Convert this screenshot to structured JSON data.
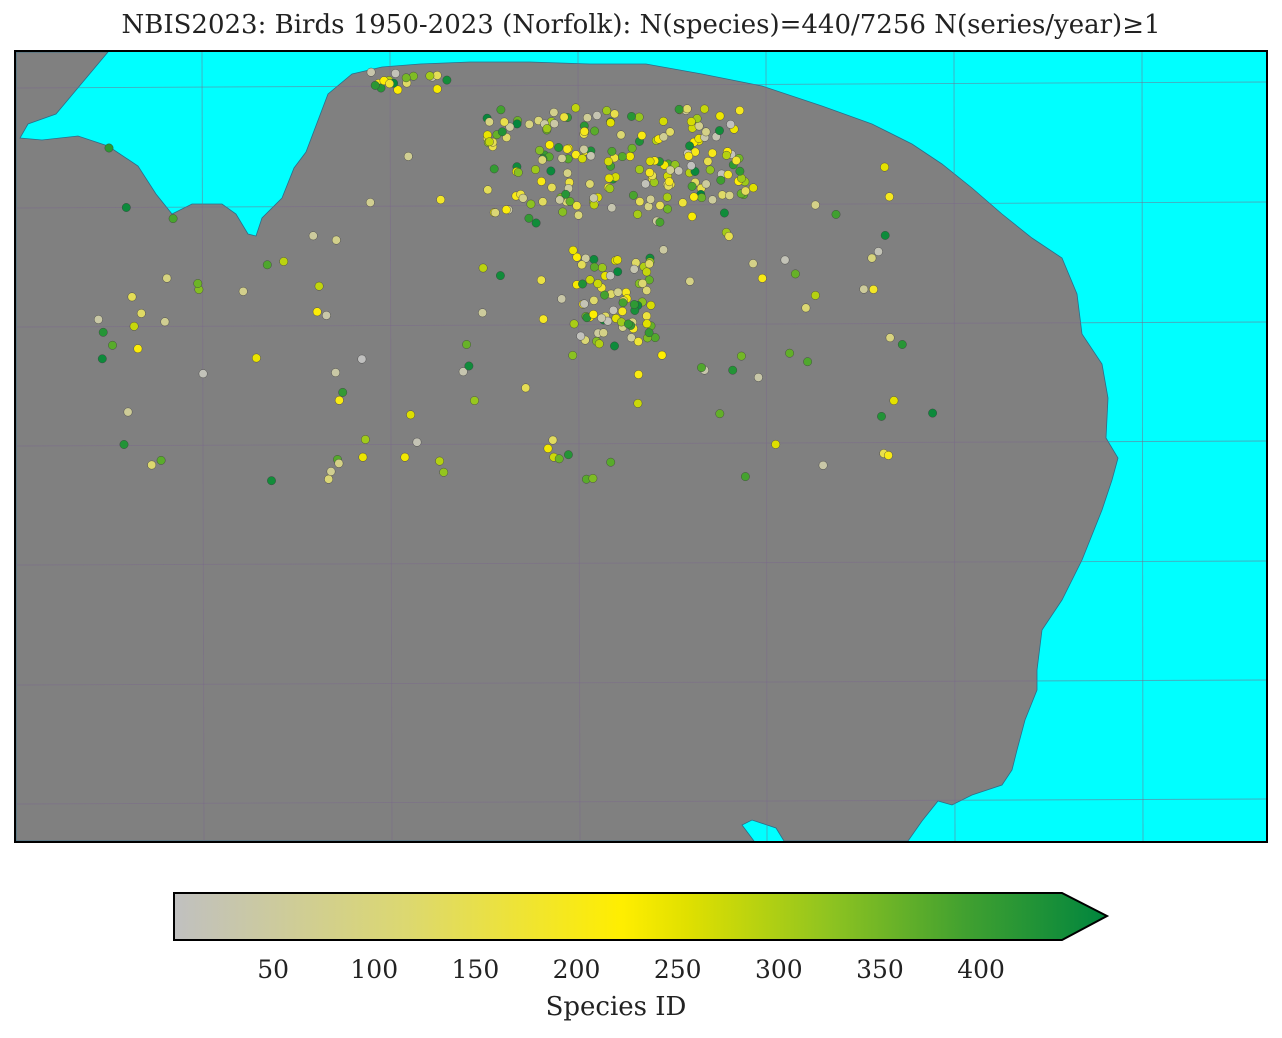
{
  "title": "NBIS2023: Birds 1950-2023 (Norfolk): N(species)=440/7256 N(series/year)≥1",
  "colors": {
    "sea": "#00ffff",
    "land": "#808080",
    "coast_line": "#2a6e8a",
    "grid": "#7a6a8a",
    "point_stroke": "#3c3c3c"
  },
  "colorbar": {
    "label": "Species ID",
    "min": 1,
    "max": 440,
    "extend": "max",
    "ticks": [
      {
        "value": 50,
        "label": "50"
      },
      {
        "value": 100,
        "label": "100"
      },
      {
        "value": 150,
        "label": "150"
      },
      {
        "value": 200,
        "label": "200"
      },
      {
        "value": 250,
        "label": "250"
      },
      {
        "value": 300,
        "label": "300"
      },
      {
        "value": 350,
        "label": "350"
      },
      {
        "value": 400,
        "label": "400"
      }
    ],
    "gradient": [
      {
        "stop": 0.0,
        "color": "#c0c0c0"
      },
      {
        "stop": 0.25,
        "color": "#dcd870"
      },
      {
        "stop": 0.48,
        "color": "#ffee00"
      },
      {
        "stop": 0.55,
        "color": "#e0e000"
      },
      {
        "stop": 0.7,
        "color": "#90c420"
      },
      {
        "stop": 0.85,
        "color": "#40a030"
      },
      {
        "stop": 1.0,
        "color": "#00853e"
      }
    ]
  },
  "chart_data": {
    "type": "scatter",
    "title": "NBIS2023: Birds 1950-2023 (Norfolk): N(species)=440/7256 N(series/year)≥1",
    "color_by": "Species ID",
    "colorbar_label": "Species ID",
    "grid": true,
    "n_points_shown": 420
  }
}
